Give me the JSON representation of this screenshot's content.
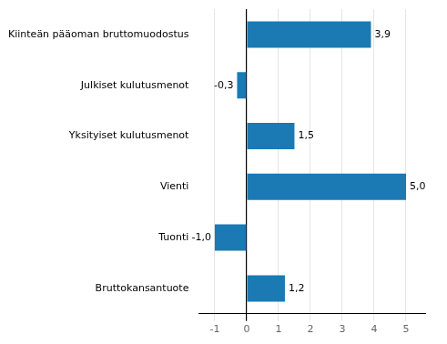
{
  "chart_data": {
    "type": "bar",
    "orientation": "horizontal",
    "categories": [
      "Kiinteän pääoman bruttomuodostus",
      "Julkiset kulutusmenot",
      "Yksityiset kulutusmenot",
      "Vienti",
      "Tuonti",
      "Bruttokansantuote"
    ],
    "values": [
      3.9,
      -0.3,
      1.5,
      5.0,
      -1.0,
      1.2
    ],
    "value_labels": [
      "3,9",
      "-0,3",
      "1,5",
      "5,0",
      "-1,0",
      "1,2"
    ],
    "data_labels": true,
    "color": "#1b7ab3",
    "xlim": [
      -1.5,
      5.6
    ],
    "xticks": [
      -1,
      0,
      1,
      2,
      3,
      4,
      5
    ],
    "grid": true
  }
}
